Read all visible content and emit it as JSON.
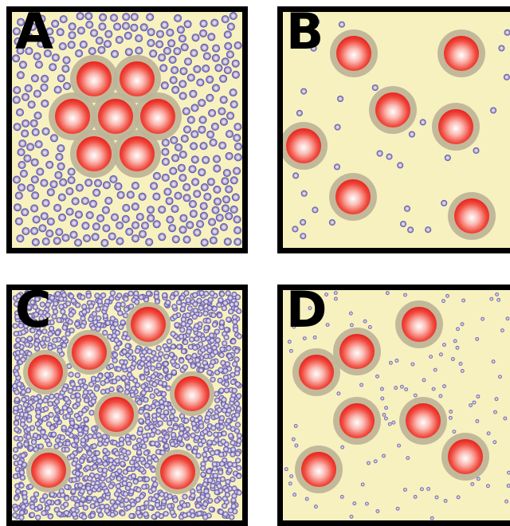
{
  "panels": [
    {
      "id": "a",
      "label": "A"
    },
    {
      "id": "b",
      "label": "B"
    },
    {
      "id": "c",
      "label": "C"
    },
    {
      "id": "d",
      "label": "D"
    }
  ],
  "colors": {
    "background": "#f7f1bf",
    "border": "#000000",
    "large_particle": "#e8211c",
    "large_particle_highlight": "#ffffff",
    "halo": "#bdb498",
    "small_particle_ring": "#4b3f9a",
    "small_particle_center": "#f4f0dc"
  }
}
